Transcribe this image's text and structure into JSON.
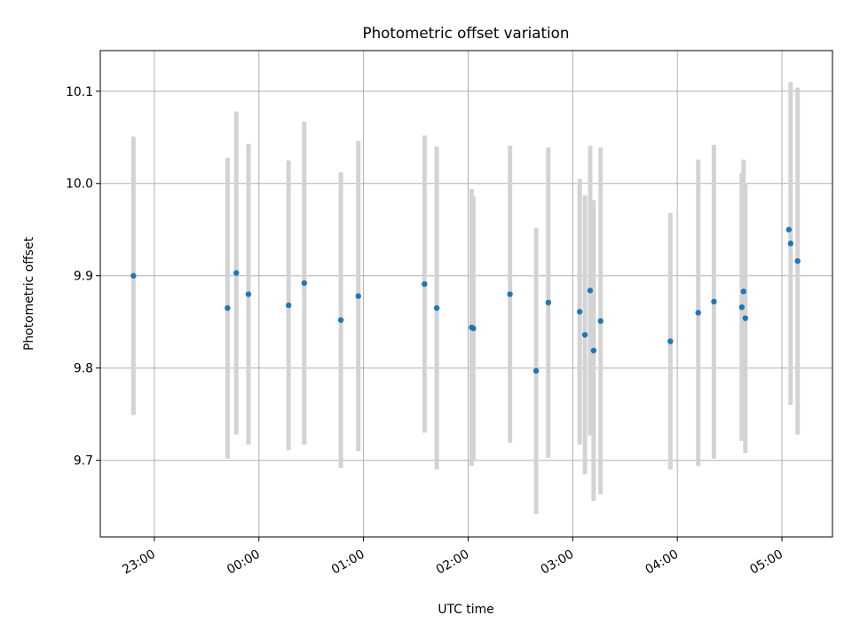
{
  "chart_data": {
    "type": "scatter",
    "title": "Photometric offset variation",
    "xlabel": "UTC time",
    "ylabel": "Photometric offset",
    "x_unit": "UTC time (HH:MM, night crossing midnight)",
    "xlim": [
      "22:29",
      "05:29"
    ],
    "ylim": [
      9.617,
      10.144
    ],
    "grid": true,
    "legend": "none",
    "x_ticks": [
      "23:00",
      "00:00",
      "01:00",
      "02:00",
      "03:00",
      "04:00",
      "05:00"
    ],
    "y_ticks": [
      9.7,
      9.8,
      9.9,
      10.0,
      10.1
    ],
    "y_tick_labels": [
      "9.7",
      "9.8",
      "9.9",
      "10.0",
      "10.1"
    ],
    "marker_color": "#1f77b4",
    "errorbar_color": "#d3d3d3",
    "series": [
      {
        "points": [
          {
            "t": "22:48",
            "y": 9.9,
            "err": 0.151
          },
          {
            "t": "23:42",
            "y": 9.865,
            "err": 0.163
          },
          {
            "t": "23:47",
            "y": 9.903,
            "err": 0.175
          },
          {
            "t": "23:54",
            "y": 9.88,
            "err": 0.163
          },
          {
            "t": "00:17",
            "y": 9.868,
            "err": 0.157
          },
          {
            "t": "00:26",
            "y": 9.892,
            "err": 0.175
          },
          {
            "t": "00:47",
            "y": 9.852,
            "err": 0.16
          },
          {
            "t": "00:57",
            "y": 9.878,
            "err": 0.168
          },
          {
            "t": "01:35",
            "y": 9.891,
            "err": 0.161
          },
          {
            "t": "01:42",
            "y": 9.865,
            "err": 0.175
          },
          {
            "t": "02:02",
            "y": 9.844,
            "err": 0.15
          },
          {
            "t": "02:03",
            "y": 9.843,
            "err": 0.143
          },
          {
            "t": "02:24",
            "y": 9.88,
            "err": 0.161
          },
          {
            "t": "02:39",
            "y": 9.797,
            "err": 0.155
          },
          {
            "t": "02:46",
            "y": 9.871,
            "err": 0.168
          },
          {
            "t": "03:04",
            "y": 9.861,
            "err": 0.144
          },
          {
            "t": "03:07",
            "y": 9.836,
            "err": 0.151
          },
          {
            "t": "03:10",
            "y": 9.884,
            "err": 0.157
          },
          {
            "t": "03:12",
            "y": 9.819,
            "err": 0.163
          },
          {
            "t": "03:16",
            "y": 9.851,
            "err": 0.188
          },
          {
            "t": "03:56",
            "y": 9.829,
            "err": 0.139
          },
          {
            "t": "04:12",
            "y": 9.86,
            "err": 0.166
          },
          {
            "t": "04:21",
            "y": 9.872,
            "err": 0.17
          },
          {
            "t": "04:37",
            "y": 9.866,
            "err": 0.145
          },
          {
            "t": "04:38",
            "y": 9.883,
            "err": 0.143
          },
          {
            "t": "04:39",
            "y": 9.854,
            "err": 0.146
          },
          {
            "t": "05:04",
            "y": 9.95,
            "err": 0.0
          },
          {
            "t": "05:05",
            "y": 9.935,
            "err": 0.175
          },
          {
            "t": "05:09",
            "y": 9.916,
            "err": 0.188
          }
        ]
      }
    ]
  }
}
